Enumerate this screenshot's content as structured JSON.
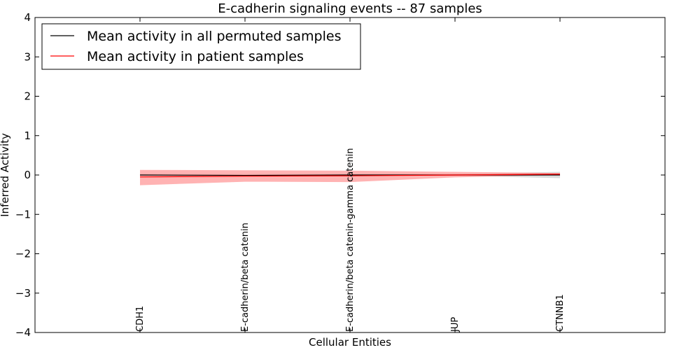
{
  "chart_data": {
    "type": "line",
    "title": "E-cadherin signaling events -- 87 samples",
    "xlabel": "Cellular Entities",
    "ylabel": "Inferred Activity",
    "ylim": [
      -4,
      4
    ],
    "yticks": [
      4,
      3,
      2,
      1,
      0,
      -1,
      -2,
      -3,
      -4
    ],
    "ytick_labels": [
      "4",
      "3",
      "2",
      "1",
      "0",
      "−1",
      "−2",
      "−3",
      "−4"
    ],
    "categories": [
      "CDH1",
      "E-cadherin/beta catenin",
      "E-cadherin/beta catenin-gamma catenin",
      "JUP",
      "CTNNB1"
    ],
    "grid": false,
    "legend_position": "top-left",
    "series": [
      {
        "name": "Mean activity in all permuted samples",
        "color": "#000000",
        "values": [
          0.0,
          -0.01,
          0.0,
          0.0,
          0.0
        ],
        "band_upper": [
          0.02,
          0.02,
          0.02,
          0.03,
          0.08
        ],
        "band_lower": [
          -0.02,
          -0.03,
          -0.02,
          -0.02,
          -0.08
        ],
        "band_color": "#b0b0b0"
      },
      {
        "name": "Mean activity in patient samples",
        "color": "#ff0000",
        "values": [
          -0.05,
          -0.03,
          -0.02,
          0.0,
          0.02
        ],
        "band_upper": [
          0.13,
          0.12,
          0.11,
          0.08,
          0.05
        ],
        "band_lower": [
          -0.26,
          -0.17,
          -0.18,
          -0.06,
          0.0
        ],
        "band_color": "#ff8080"
      }
    ]
  }
}
